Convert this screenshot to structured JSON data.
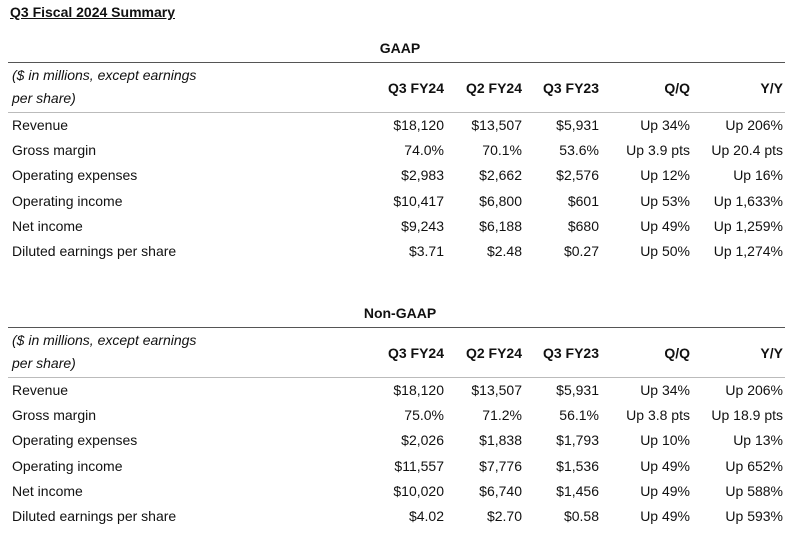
{
  "title": "Q3 Fiscal 2024 Summary",
  "tables": [
    {
      "section": "GAAP",
      "header_note": "($ in millions, except earnings per share)",
      "columns": [
        "Q3 FY24",
        "Q2 FY24",
        "Q3 FY23",
        "Q/Q",
        "Y/Y"
      ],
      "rows": [
        {
          "label": "Revenue",
          "values": [
            "$18,120",
            "$13,507",
            "$5,931",
            "Up 34%",
            "Up 206%"
          ]
        },
        {
          "label": "Gross margin",
          "values": [
            "74.0%",
            "70.1%",
            "53.6%",
            "Up 3.9 pts",
            "Up 20.4 pts"
          ]
        },
        {
          "label": "Operating expenses",
          "values": [
            "$2,983",
            "$2,662",
            "$2,576",
            "Up 12%",
            "Up 16%"
          ]
        },
        {
          "label": "Operating income",
          "values": [
            "$10,417",
            "$6,800",
            "$601",
            "Up 53%",
            "Up 1,633%"
          ]
        },
        {
          "label": "Net income",
          "values": [
            "$9,243",
            "$6,188",
            "$680",
            "Up 49%",
            "Up 1,259%"
          ]
        },
        {
          "label": "Diluted earnings per share",
          "values": [
            "$3.71",
            "$2.48",
            "$0.27",
            "Up 50%",
            "Up 1,274%"
          ]
        }
      ]
    },
    {
      "section": "Non-GAAP",
      "header_note": "($ in millions, except earnings per share)",
      "columns": [
        "Q3 FY24",
        "Q2 FY24",
        "Q3 FY23",
        "Q/Q",
        "Y/Y"
      ],
      "rows": [
        {
          "label": "Revenue",
          "values": [
            "$18,120",
            "$13,507",
            "$5,931",
            "Up 34%",
            "Up 206%"
          ]
        },
        {
          "label": "Gross margin",
          "values": [
            "75.0%",
            "71.2%",
            "56.1%",
            "Up 3.8 pts",
            "Up 18.9 pts"
          ]
        },
        {
          "label": "Operating expenses",
          "values": [
            "$2,026",
            "$1,838",
            "$1,793",
            "Up 10%",
            "Up 13%"
          ]
        },
        {
          "label": "Operating income",
          "values": [
            "$11,557",
            "$7,776",
            "$1,536",
            "Up 49%",
            "Up 652%"
          ]
        },
        {
          "label": "Net income",
          "values": [
            "$10,020",
            "$6,740",
            "$1,456",
            "Up 49%",
            "Up 588%"
          ]
        },
        {
          "label": "Diluted earnings per share",
          "values": [
            "$4.02",
            "$2.70",
            "$0.58",
            "Up 49%",
            "Up 593%"
          ]
        }
      ]
    }
  ]
}
